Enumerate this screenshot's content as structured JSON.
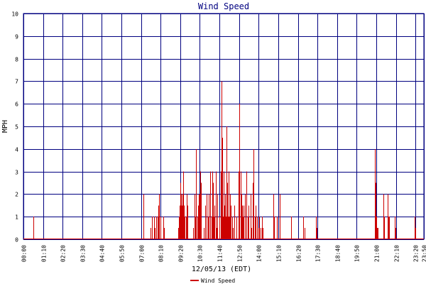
{
  "chart_data": {
    "type": "bar",
    "title": "Wind Speed",
    "xlabel": "12/05/13 (EDT)",
    "ylabel": "MPH",
    "ylim": [
      0,
      10
    ],
    "xlim_minutes": [
      0,
      1430
    ],
    "grid": true,
    "legend_position": "bottom-left",
    "y_ticks": [
      "0",
      "1",
      "2",
      "3",
      "4",
      "5",
      "6",
      "7",
      "8",
      "9",
      "10"
    ],
    "x_ticks": [
      {
        "label": "00:00",
        "minute": 0
      },
      {
        "label": "01:10",
        "minute": 70
      },
      {
        "label": "02:20",
        "minute": 140
      },
      {
        "label": "03:30",
        "minute": 210
      },
      {
        "label": "04:40",
        "minute": 280
      },
      {
        "label": "05:50",
        "minute": 350
      },
      {
        "label": "07:00",
        "minute": 420
      },
      {
        "label": "08:10",
        "minute": 490
      },
      {
        "label": "09:20",
        "minute": 560
      },
      {
        "label": "10:30",
        "minute": 630
      },
      {
        "label": "11:40",
        "minute": 700
      },
      {
        "label": "12:50",
        "minute": 770
      },
      {
        "label": "14:00",
        "minute": 840
      },
      {
        "label": "15:10",
        "minute": 910
      },
      {
        "label": "16:20",
        "minute": 980
      },
      {
        "label": "17:30",
        "minute": 1050
      },
      {
        "label": "18:40",
        "minute": 1120
      },
      {
        "label": "19:50",
        "minute": 1190
      },
      {
        "label": "21:00",
        "minute": 1260
      },
      {
        "label": "22:10",
        "minute": 1330
      },
      {
        "label": "23:20",
        "minute": 1400
      },
      {
        "label": "23:50",
        "minute": 1430
      }
    ],
    "series": [
      {
        "name": "Wind Speed",
        "color": "#cc0000",
        "x": [
          35,
          36,
          428,
          429,
          455,
          458,
          466,
          470,
          473,
          478,
          481,
          484,
          489,
          500,
          503,
          552,
          554,
          557,
          560,
          562,
          563,
          565,
          567,
          569,
          570,
          571,
          573,
          576,
          580,
          584,
          586,
          606,
          610,
          613,
          616,
          620,
          623,
          624,
          626,
          628,
          629,
          631,
          635,
          645,
          648,
          655,
          658,
          663,
          667,
          671,
          673,
          675,
          677,
          679,
          683,
          687,
          690,
          693,
          700,
          705,
          708,
          710,
          711,
          713,
          715,
          718,
          720,
          722,
          724,
          726,
          728,
          730,
          732,
          734,
          736,
          738,
          741,
          745,
          749,
          753,
          760,
          768,
          772,
          775,
          777,
          779,
          781,
          783,
          786,
          790,
          795,
          800,
          805,
          811,
          815,
          818,
          820,
          822,
          826,
          829,
          833,
          838,
          843,
          848,
          853,
          855,
          893,
          895,
          905,
          915,
          955,
          957,
          1000,
          1003,
          1045,
          1048,
          1255,
          1257,
          1259,
          1261,
          1263,
          1265,
          1285,
          1287,
          1300,
          1302,
          1305,
          1306,
          1326,
          1328,
          1397,
          1399
        ],
        "values": [
          1,
          0.5,
          2,
          1,
          0.5,
          1,
          1,
          0.5,
          1,
          1,
          1.5,
          2,
          1,
          1,
          0.5,
          0.5,
          1,
          1.5,
          2.5,
          2,
          1,
          1.5,
          0.5,
          2,
          1,
          3,
          1.5,
          1,
          1,
          2,
          1.5,
          0.5,
          2,
          1,
          4,
          1,
          0.5,
          1.5,
          2,
          1,
          2,
          3,
          2.5,
          0.5,
          1.5,
          2,
          1,
          2,
          3,
          1,
          0.5,
          3,
          2.5,
          1,
          1.5,
          3,
          0.5,
          2,
          1,
          3,
          7,
          4.5,
          2,
          1,
          3,
          1.5,
          2,
          1,
          5,
          3,
          2.5,
          1,
          3,
          1.5,
          1,
          2,
          1.5,
          1,
          0.5,
          1.5,
          1,
          3,
          6,
          1,
          3,
          2,
          1.5,
          1,
          1.5,
          2,
          3,
          1,
          1.5,
          2,
          0.5,
          1,
          2.5,
          4,
          1,
          1.5,
          1,
          0.5,
          1,
          0.5,
          1,
          0.5,
          2,
          1,
          1,
          2,
          1,
          0.5,
          1,
          0.5,
          1,
          0.5,
          4,
          2.5,
          0.5,
          1,
          0.5,
          0.5,
          2,
          1,
          2,
          1,
          1,
          0.5,
          1,
          0.5,
          1,
          0.5
        ]
      }
    ]
  }
}
